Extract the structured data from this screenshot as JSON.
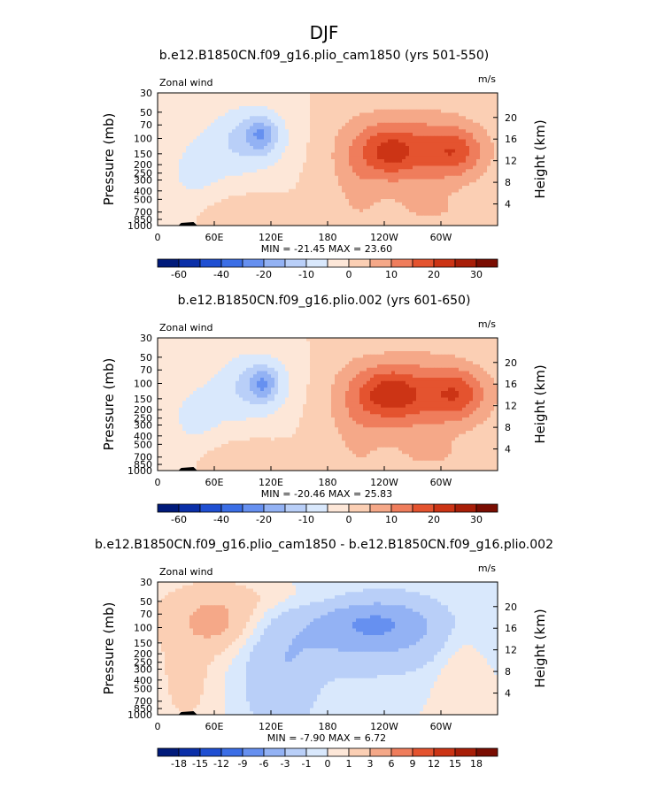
{
  "figure": {
    "title": "DJF"
  },
  "chart_data": [
    {
      "type": "heatmap",
      "title": "b.e12.B1850CN.f09_g16.plio_cam1850 (yrs 501-550)",
      "left_label": "Zonal wind",
      "right_label": "m/s",
      "xlabel": "",
      "ylabel": "Pressure (mb)",
      "ylabel_right": "Height (km)",
      "x_ticks": [
        "0",
        "60E",
        "120E",
        "180",
        "120W",
        "60W"
      ],
      "y_ticks": [
        "30",
        "50",
        "70",
        "100",
        "150",
        "200",
        "250",
        "300",
        "400",
        "500",
        "700",
        "850",
        "1000"
      ],
      "height_ticks": [
        "20",
        "16",
        "12",
        "8",
        "4"
      ],
      "min_max": "MIN = -21.45   MAX =  23.60",
      "levels": [
        -60,
        -50,
        -40,
        -30,
        -20,
        -15,
        -10,
        -5,
        0,
        5,
        10,
        15,
        20,
        25,
        30
      ],
      "level_labels": [
        "-60",
        "-40",
        "-20",
        "-10",
        "0",
        "10",
        "20",
        "30"
      ],
      "colors": [
        "#001a7a",
        "#0a2fa8",
        "#1f4fd2",
        "#3b6ee6",
        "#6690f0",
        "#93b2f4",
        "#b9cff8",
        "#d9e8fc",
        "#fde7d8",
        "#fbcfb4",
        "#f5a888",
        "#ef7d5c",
        "#e4532f",
        "#cc3415",
        "#a81e08",
        "#7a0d02"
      ],
      "features": [
        {
          "x": 100,
          "p": 100,
          "rx": 42,
          "rp": 0.45,
          "v": -12
        },
        {
          "x": 110,
          "p": 90,
          "rx": 15,
          "rp": 0.2,
          "v": -10
        },
        {
          "x": 270,
          "p": 140,
          "rx": 75,
          "rp": 0.55,
          "v": 14
        },
        {
          "x": 245,
          "p": 140,
          "rx": 28,
          "rp": 0.3,
          "v": 10
        },
        {
          "x": 315,
          "p": 140,
          "rx": 28,
          "rp": 0.3,
          "v": 10
        },
        {
          "x": 210,
          "p": 400,
          "rx": 25,
          "rp": 0.9,
          "v": 4
        },
        {
          "x": 80,
          "p": 720,
          "rx": 45,
          "rp": 0.25,
          "v": 5
        },
        {
          "x": 290,
          "p": 720,
          "rx": 50,
          "rp": 0.25,
          "v": 4
        },
        {
          "x": 40,
          "p": 250,
          "rx": 40,
          "rp": 0.6,
          "v": -6
        }
      ]
    },
    {
      "type": "heatmap",
      "title": "b.e12.B1850CN.f09_g16.plio.002 (yrs 601-650)",
      "left_label": "Zonal wind",
      "right_label": "m/s",
      "xlabel": "",
      "ylabel": "Pressure (mb)",
      "ylabel_right": "Height (km)",
      "x_ticks": [
        "0",
        "60E",
        "120E",
        "180",
        "120W",
        "60W"
      ],
      "y_ticks": [
        "30",
        "50",
        "70",
        "100",
        "150",
        "200",
        "250",
        "300",
        "400",
        "500",
        "700",
        "850",
        "1000"
      ],
      "height_ticks": [
        "20",
        "16",
        "12",
        "8",
        "4"
      ],
      "min_max": "MIN = -20.46   MAX =  25.83",
      "levels": [
        -60,
        -50,
        -40,
        -30,
        -20,
        -15,
        -10,
        -5,
        0,
        5,
        10,
        15,
        20,
        25,
        30
      ],
      "level_labels": [
        "-60",
        "-40",
        "-20",
        "-10",
        "0",
        "10",
        "20",
        "30"
      ],
      "colors": [
        "#001a7a",
        "#0a2fa8",
        "#1f4fd2",
        "#3b6ee6",
        "#6690f0",
        "#93b2f4",
        "#b9cff8",
        "#d9e8fc",
        "#fde7d8",
        "#fbcfb4",
        "#f5a888",
        "#ef7d5c",
        "#e4532f",
        "#cc3415",
        "#a81e08",
        "#7a0d02"
      ],
      "features": [
        {
          "x": 105,
          "p": 105,
          "rx": 40,
          "rp": 0.45,
          "v": -12
        },
        {
          "x": 112,
          "p": 100,
          "rx": 14,
          "rp": 0.2,
          "v": -10
        },
        {
          "x": 270,
          "p": 140,
          "rx": 78,
          "rp": 0.55,
          "v": 15
        },
        {
          "x": 245,
          "p": 130,
          "rx": 30,
          "rp": 0.3,
          "v": 11
        },
        {
          "x": 318,
          "p": 130,
          "rx": 28,
          "rp": 0.3,
          "v": 10
        },
        {
          "x": 210,
          "p": 400,
          "rx": 25,
          "rp": 0.9,
          "v": 4
        },
        {
          "x": 80,
          "p": 720,
          "rx": 45,
          "rp": 0.25,
          "v": 5
        },
        {
          "x": 290,
          "p": 720,
          "rx": 50,
          "rp": 0.25,
          "v": 4
        },
        {
          "x": 40,
          "p": 250,
          "rx": 40,
          "rp": 0.6,
          "v": -6
        }
      ]
    },
    {
      "type": "heatmap",
      "title": "b.e12.B1850CN.f09_g16.plio_cam1850 - b.e12.B1850CN.f09_g16.plio.002",
      "left_label": "Zonal wind",
      "right_label": "m/s",
      "xlabel": "",
      "ylabel": "Pressure (mb)",
      "ylabel_right": "Height (km)",
      "x_ticks": [
        "0",
        "60E",
        "120E",
        "180",
        "120W",
        "60W"
      ],
      "y_ticks": [
        "30",
        "50",
        "70",
        "100",
        "150",
        "200",
        "250",
        "300",
        "400",
        "500",
        "700",
        "850",
        "1000"
      ],
      "height_ticks": [
        "20",
        "16",
        "12",
        "8",
        "4"
      ],
      "min_max": "MIN =  -7.90   MAX =   6.72",
      "levels": [
        -18,
        -15,
        -12,
        -9,
        -6,
        -3,
        -1,
        0,
        1,
        3,
        6,
        9,
        12,
        15,
        18
      ],
      "level_labels": [
        "-18",
        "-15",
        "-12",
        "-9",
        "-6",
        "-3",
        "-1",
        "0",
        "1",
        "3",
        "6",
        "9",
        "12",
        "15",
        "18"
      ],
      "colors": [
        "#001a7a",
        "#0a2fa8",
        "#1f4fd2",
        "#3b6ee6",
        "#6690f0",
        "#93b2f4",
        "#b9cff8",
        "#d9e8fc",
        "#fde7d8",
        "#fbcfb4",
        "#f5a888",
        "#ef7d5c",
        "#e4532f",
        "#cc3415",
        "#a81e08",
        "#7a0d02"
      ],
      "features": [
        {
          "x": 225,
          "p": 100,
          "rx": 90,
          "rp": 0.55,
          "v": -4
        },
        {
          "x": 230,
          "p": 90,
          "rx": 45,
          "rp": 0.25,
          "v": -3
        },
        {
          "x": 60,
          "p": 80,
          "rx": 60,
          "rp": 0.45,
          "v": 2.5
        },
        {
          "x": 60,
          "p": 90,
          "rx": 25,
          "rp": 0.25,
          "v": 1.5
        },
        {
          "x": 170,
          "p": 45,
          "rx": 120,
          "rp": 0.25,
          "v": 1.2
        },
        {
          "x": 320,
          "p": 300,
          "rx": 25,
          "rp": 0.7,
          "v": 1.2
        },
        {
          "x": 130,
          "p": 350,
          "rx": 40,
          "rp": 0.8,
          "v": -2.5
        },
        {
          "x": 30,
          "p": 400,
          "rx": 30,
          "rp": 0.7,
          "v": 1.5
        }
      ]
    }
  ]
}
